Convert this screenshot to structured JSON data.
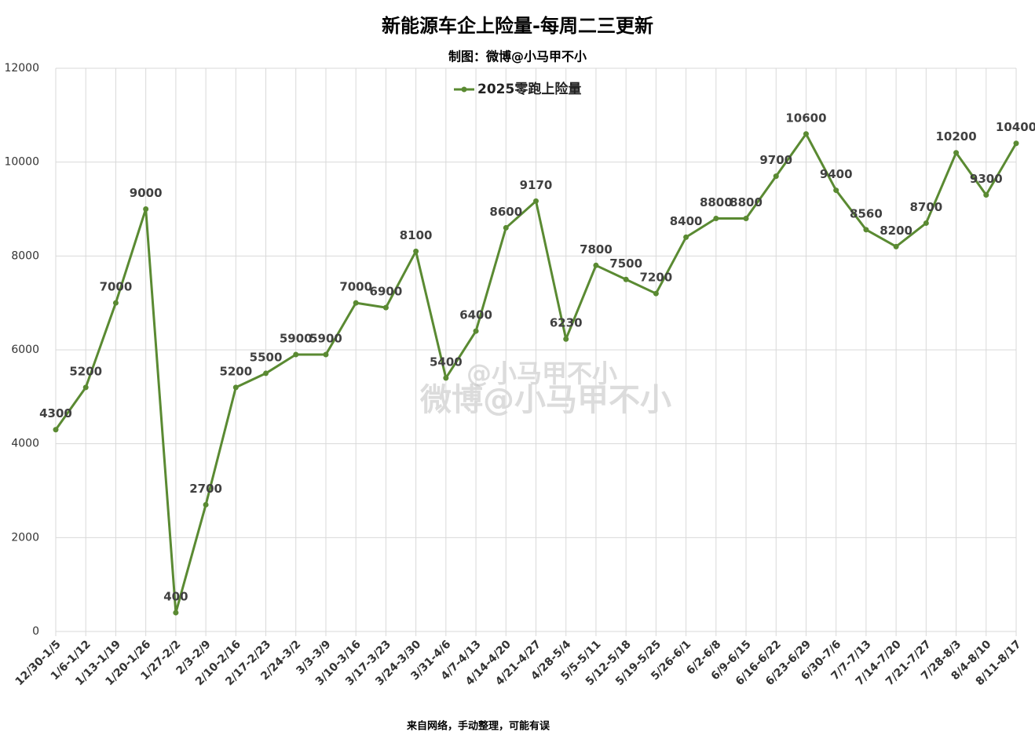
{
  "chart_data": {
    "type": "line",
    "title": "新能源车企上险量-每周二三更新",
    "subtitle": "制图：微博@小马甲不小",
    "footnote": "来自网络，手动整理，可能有误",
    "watermark": [
      "@小马甲不小",
      "微博@小马甲不小"
    ],
    "categories": [
      "12/30-1/5",
      "1/6-1/12",
      "1/13-1/19",
      "1/20-1/26",
      "1/27-2/2",
      "2/3-2/9",
      "2/10-2/16",
      "2/17-2/23",
      "2/24-3/2",
      "3/3-3/9",
      "3/10-3/16",
      "3/17-3/23",
      "3/24-3/30",
      "3/31-4/6",
      "4/7-4/13",
      "4/14-4/20",
      "4/21-4/27",
      "4/28-5/4",
      "5/5-5/11",
      "5/12-5/18",
      "5/19-5/25",
      "5/26-6/1",
      "6/2-6/8",
      "6/9-6/15",
      "6/16-6/22",
      "6/23-6/29",
      "6/30-7/6",
      "7/7-7/13",
      "7/14-7/20",
      "7/21-7/27",
      "7/28-8/3",
      "8/4-8/10",
      "8/11-8/17"
    ],
    "series": [
      {
        "name": "2025零跑上险量",
        "color": "#5a8a32",
        "values": [
          4300,
          5200,
          7000,
          9000,
          400,
          2700,
          5200,
          5500,
          5900,
          5900,
          7000,
          6900,
          8100,
          5400,
          6400,
          8600,
          9170,
          6230,
          7800,
          7500,
          7200,
          8400,
          8800,
          8800,
          9700,
          10600,
          9400,
          8560,
          8200,
          8700,
          10200,
          9300,
          10400
        ]
      }
    ],
    "ylim": [
      0,
      12000
    ],
    "yticks": [
      0,
      2000,
      4000,
      6000,
      8000,
      10000,
      12000
    ],
    "grid": true,
    "legend": "top"
  }
}
